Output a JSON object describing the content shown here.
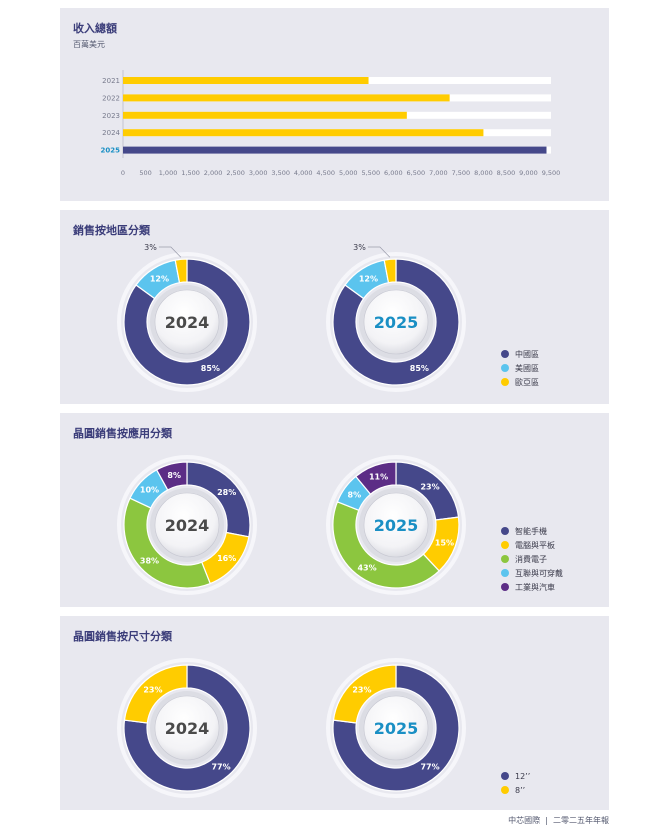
{
  "revenue": {
    "title": "收入總額",
    "subtitle": "百萬美元",
    "chart_data": {
      "type": "bar",
      "orientation": "horizontal",
      "categories": [
        "2021",
        "2022",
        "2023",
        "2024",
        "2025"
      ],
      "values": [
        5450,
        7250,
        6300,
        8000,
        9400
      ],
      "xlim": [
        0,
        9500
      ],
      "xticks": [
        "0",
        "500",
        "1,000",
        "1,500",
        "2,000",
        "2,500",
        "3,000",
        "3,500",
        "4,000",
        "4,500",
        "5,000",
        "5,500",
        "6,000",
        "6,500",
        "7,000",
        "7,500",
        "8,000",
        "8,500",
        "9,000",
        "9,500"
      ],
      "highlight_category": "2025",
      "colors": {
        "default": "#ffcc00",
        "highlight": "#45488a",
        "track": "#ffffff"
      }
    }
  },
  "region": {
    "title": "銷售按地區分類",
    "chart_data": {
      "type": "pie",
      "charts": [
        {
          "label": "2024",
          "slices": [
            {
              "name": "中國區",
              "value": 85,
              "label": "85%"
            },
            {
              "name": "美國區",
              "value": 12,
              "label": "12%"
            },
            {
              "name": "歐亞區",
              "value": 3,
              "label": "3%"
            }
          ]
        },
        {
          "label": "2025",
          "slices": [
            {
              "name": "中國區",
              "value": 85,
              "label": "85%"
            },
            {
              "name": "美國區",
              "value": 12,
              "label": "12%"
            },
            {
              "name": "歐亞區",
              "value": 3,
              "label": "3%"
            }
          ]
        }
      ],
      "colors": [
        "#45488a",
        "#5bc4ee",
        "#ffcc00"
      ]
    },
    "legend": [
      {
        "name": "中國區",
        "color": "#45488a"
      },
      {
        "name": "美國區",
        "color": "#5bc4ee"
      },
      {
        "name": "歐亞區",
        "color": "#ffcc00"
      }
    ]
  },
  "application": {
    "title": "晶圓銷售按應用分類",
    "chart_data": {
      "type": "pie",
      "charts": [
        {
          "label": "2024",
          "slices": [
            {
              "name": "智能手機",
              "value": 28,
              "label": "28%"
            },
            {
              "name": "電腦與平板",
              "value": 16,
              "label": "16%"
            },
            {
              "name": "消費電子",
              "value": 38,
              "label": "38%"
            },
            {
              "name": "互聯與可穿戴",
              "value": 10,
              "label": "10%"
            },
            {
              "name": "工業與汽車",
              "value": 8,
              "label": "8%"
            }
          ]
        },
        {
          "label": "2025",
          "slices": [
            {
              "name": "智能手機",
              "value": 23,
              "label": "23%"
            },
            {
              "name": "電腦與平板",
              "value": 15,
              "label": "15%"
            },
            {
              "name": "消費電子",
              "value": 43,
              "label": "43%"
            },
            {
              "name": "互聯與可穿戴",
              "value": 8,
              "label": "8%"
            },
            {
              "name": "工業與汽車",
              "value": 11,
              "label": "11%"
            }
          ]
        }
      ],
      "colors": [
        "#45488a",
        "#ffcc00",
        "#8cc63f",
        "#5bc4ee",
        "#5c2d86"
      ]
    },
    "legend": [
      {
        "name": "智能手機",
        "color": "#45488a"
      },
      {
        "name": "電腦與平板",
        "color": "#ffcc00"
      },
      {
        "name": "消費電子",
        "color": "#8cc63f"
      },
      {
        "name": "互聯與可穿戴",
        "color": "#5bc4ee"
      },
      {
        "name": "工業與汽車",
        "color": "#5c2d86"
      }
    ]
  },
  "size": {
    "title": "晶圓銷售按尺寸分類",
    "chart_data": {
      "type": "pie",
      "charts": [
        {
          "label": "2024",
          "slices": [
            {
              "name": "12’’",
              "value": 77,
              "label": "77%"
            },
            {
              "name": "8’’",
              "value": 23,
              "label": "23%"
            }
          ]
        },
        {
          "label": "2025",
          "slices": [
            {
              "name": "12’’",
              "value": 77,
              "label": "77%"
            },
            {
              "name": "8’’",
              "value": 23,
              "label": "23%"
            }
          ]
        }
      ],
      "colors": [
        "#45488a",
        "#ffcc00"
      ]
    },
    "legend": [
      {
        "name": "12’’",
        "color": "#45488a"
      },
      {
        "name": "8’’",
        "color": "#ffcc00"
      }
    ]
  },
  "year_label_colors": {
    "2024": "#4a4a4a",
    "2025": "#1a8fc4"
  },
  "footer": {
    "company": "中芯國際",
    "report": "二零二五年年報"
  }
}
